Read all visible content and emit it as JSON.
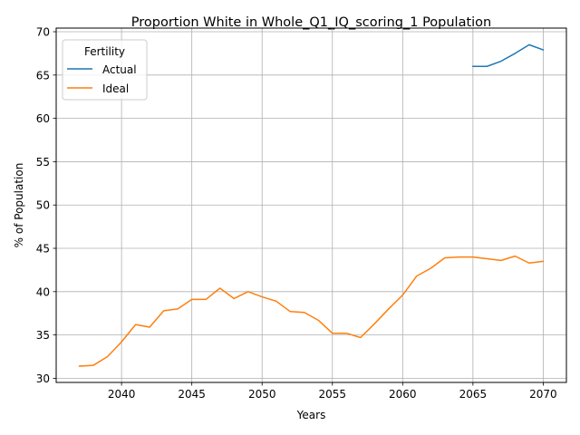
{
  "chart_data": {
    "type": "line",
    "title": "Proportion White in Whole_Q1_IQ_scoring_1 Population",
    "xlabel": "Years",
    "ylabel": "% of Population",
    "xlim": [
      2035.35,
      2071.65
    ],
    "ylim": [
      29.52,
      70.42
    ],
    "xticks": [
      2040,
      2045,
      2050,
      2055,
      2060,
      2065,
      2070
    ],
    "yticks": [
      30,
      35,
      40,
      45,
      50,
      55,
      60,
      65,
      70
    ],
    "grid": true,
    "legend": {
      "title": "Fertility",
      "placement": "top-left"
    },
    "series": [
      {
        "name": "Actual",
        "color": "#1f77b4",
        "x": [
          2065,
          2066,
          2067,
          2068,
          2069,
          2070
        ],
        "y": [
          66.0,
          66.0,
          66.6,
          67.5,
          68.5,
          67.9
        ]
      },
      {
        "name": "Ideal",
        "color": "#ff7f0e",
        "x": [
          2037,
          2038,
          2039,
          2040,
          2041,
          2042,
          2043,
          2044,
          2045,
          2046,
          2047,
          2048,
          2049,
          2050,
          2051,
          2052,
          2053,
          2054,
          2055,
          2056,
          2057,
          2058,
          2059,
          2060,
          2061,
          2062,
          2063,
          2064,
          2065,
          2066,
          2067,
          2068,
          2069,
          2070
        ],
        "y": [
          31.4,
          31.5,
          32.5,
          34.2,
          36.2,
          35.9,
          37.8,
          38.0,
          39.1,
          39.1,
          40.4,
          39.2,
          40.0,
          39.4,
          38.9,
          37.7,
          37.6,
          36.7,
          35.2,
          35.2,
          34.7,
          36.3,
          38.0,
          39.6,
          41.8,
          42.7,
          43.9,
          44.0,
          44.0,
          43.8,
          43.6,
          44.1,
          43.3,
          43.5
        ]
      }
    ]
  }
}
